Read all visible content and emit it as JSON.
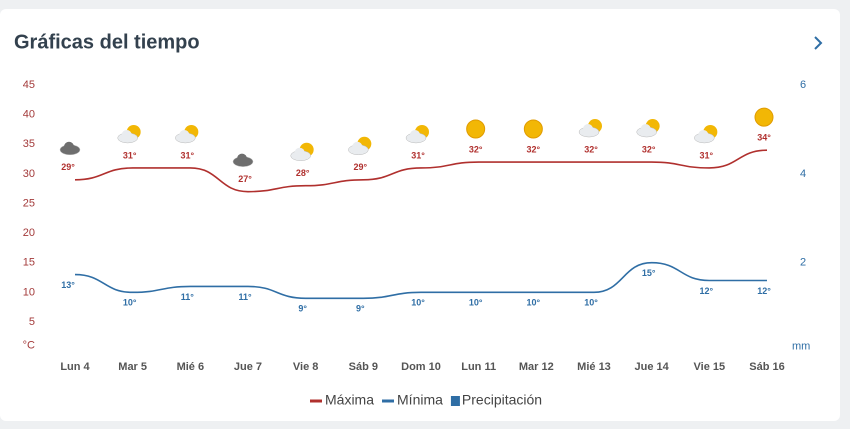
{
  "chart_data": {
    "type": "line",
    "title": "Gráficas del tiempo",
    "categories": [
      "Lun 4",
      "Mar 5",
      "Mié 6",
      "Jue 7",
      "Vie 8",
      "Sáb 9",
      "Dom 10",
      "Lun 11",
      "Mar 12",
      "Mié 13",
      "Jue 14",
      "Vie 15",
      "Sáb 16"
    ],
    "series": [
      {
        "name": "Máxima",
        "color": "#b0302e",
        "values": [
          29,
          31,
          31,
          27,
          28,
          29,
          31,
          32,
          32,
          32,
          32,
          31,
          34
        ],
        "value_labels": [
          "29°",
          "31°",
          "31°",
          "27°",
          "28°",
          "29°",
          "31°",
          "32°",
          "32°",
          "32°",
          "32°",
          "31°",
          "34°"
        ]
      },
      {
        "name": "Mínima",
        "color": "#2f6ea5",
        "values": [
          13,
          10,
          11,
          11,
          9,
          9,
          10,
          10,
          10,
          10,
          15,
          12,
          12
        ],
        "value_labels": [
          "13°",
          "10°",
          "11°",
          "11°",
          "9°",
          "9°",
          "10°",
          "10°",
          "10°",
          "10°",
          "15°",
          "12°",
          "12°"
        ]
      },
      {
        "name": "Precipitación",
        "color": "#2f6ea5",
        "axis": "y2",
        "values": [
          0,
          0,
          0,
          0,
          0,
          0,
          0,
          0,
          0,
          0,
          0,
          0,
          0
        ]
      }
    ],
    "ylim": [
      0,
      45
    ],
    "yticks": [
      {
        "value": 0,
        "label": "°C"
      },
      5,
      10,
      15,
      20,
      25,
      30,
      35,
      40,
      45
    ],
    "y2lim": [
      0,
      6
    ],
    "y2ticks": [
      {
        "value": 0,
        "label": "mm"
      },
      2,
      4,
      6
    ],
    "legend": "bottom"
  }
}
